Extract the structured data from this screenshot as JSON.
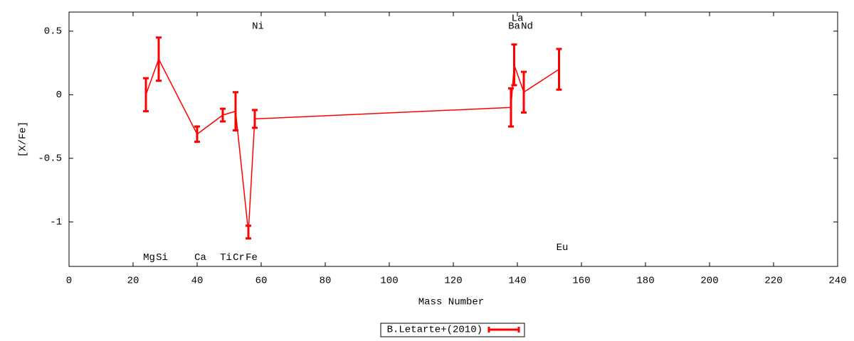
{
  "chart_data": {
    "type": "line",
    "xlabel": "Mass Number",
    "ylabel": "[X/Fe]",
    "x": [
      24,
      28,
      40,
      48,
      52,
      56,
      58,
      138,
      139,
      142,
      153
    ],
    "series": [
      {
        "name": "B.Letarte+(2010)",
        "color": "#ff0000",
        "values": [
          0,
          0.28,
          -0.31,
          -0.16,
          -0.13,
          -1.08,
          -0.19,
          -0.1,
          0.235,
          0.02,
          0.2
        ],
        "errors": [
          0.13,
          0.17,
          0.06,
          0.05,
          0.15,
          0.05,
          0.07,
          0.15,
          0.16,
          0.16,
          0.16
        ]
      }
    ],
    "annotations": [
      {
        "text": "Mg",
        "x": 25,
        "y": -1.28
      },
      {
        "text": "Si",
        "x": 29,
        "y": -1.28
      },
      {
        "text": "Ca",
        "x": 41,
        "y": -1.28
      },
      {
        "text": "Ti",
        "x": 49,
        "y": -1.28
      },
      {
        "text": "Cr",
        "x": 53,
        "y": -1.28
      },
      {
        "text": "Fe",
        "x": 57,
        "y": -1.28
      },
      {
        "text": "Ni",
        "x": 59,
        "y": 0.54
      },
      {
        "text": "Ba",
        "x": 139,
        "y": 0.54
      },
      {
        "text": "La",
        "x": 140,
        "y": 0.6
      },
      {
        "text": "Nd",
        "x": 143,
        "y": 0.54
      },
      {
        "text": "Eu",
        "x": 154,
        "y": -1.2
      }
    ],
    "xlim": [
      0,
      240
    ],
    "xticks": [
      0,
      20,
      40,
      60,
      80,
      100,
      120,
      140,
      160,
      180,
      200,
      220,
      240
    ],
    "ylim": [
      -1.35,
      0.65
    ],
    "yticks": [
      0.5,
      0,
      -0.5,
      -1
    ],
    "grid": false,
    "legend": "bottom"
  }
}
